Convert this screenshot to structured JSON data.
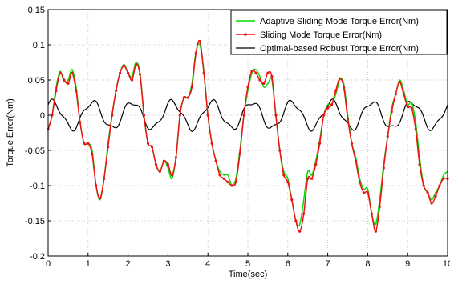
{
  "chart_data": {
    "type": "line",
    "title": "",
    "xlabel": "Time(sec)",
    "ylabel": "Torque Error(Nm)",
    "xlim": [
      0,
      10
    ],
    "ylim": [
      -0.2,
      0.15
    ],
    "x_ticks": [
      "0",
      "1",
      "2",
      "3",
      "4",
      "5",
      "6",
      "7",
      "8",
      "9",
      "10"
    ],
    "y_ticks": [
      "0.15",
      "0.1",
      "0.05",
      "0",
      "-0.05",
      "-0.1",
      "-0.15",
      "-0.2"
    ],
    "grid": true,
    "legend_position": "top-right",
    "series": [
      {
        "name": "Adaptive Sliding Mode Torque Error(Nm)",
        "color": "#00dd00",
        "marker": "none",
        "x": [
          0,
          0.1,
          0.2,
          0.3,
          0.4,
          0.5,
          0.6,
          0.7,
          0.8,
          0.9,
          1.0,
          1.1,
          1.2,
          1.3,
          1.4,
          1.5,
          1.6,
          1.7,
          1.8,
          1.9,
          2.0,
          2.1,
          2.2,
          2.3,
          2.4,
          2.5,
          2.6,
          2.7,
          2.8,
          2.9,
          3.0,
          3.1,
          3.2,
          3.3,
          3.4,
          3.5,
          3.6,
          3.7,
          3.8,
          3.9,
          4.0,
          4.1,
          4.2,
          4.3,
          4.4,
          4.5,
          4.6,
          4.7,
          4.8,
          4.9,
          5.0,
          5.1,
          5.2,
          5.3,
          5.4,
          5.5,
          5.6,
          5.7,
          5.8,
          5.9,
          6.0,
          6.1,
          6.2,
          6.3,
          6.4,
          6.5,
          6.6,
          6.7,
          6.8,
          6.9,
          7.0,
          7.1,
          7.2,
          7.3,
          7.4,
          7.5,
          7.6,
          7.7,
          7.8,
          7.9,
          8.0,
          8.1,
          8.2,
          8.3,
          8.4,
          8.5,
          8.6,
          8.7,
          8.8,
          8.9,
          9.0,
          9.1,
          9.2,
          9.3,
          9.4,
          9.5,
          9.6,
          9.7,
          9.8,
          9.9,
          10.0
        ],
        "y": [
          -0.02,
          0.0,
          0.04,
          0.062,
          0.048,
          0.05,
          0.065,
          0.04,
          -0.01,
          -0.04,
          -0.04,
          -0.05,
          -0.1,
          -0.12,
          -0.09,
          -0.04,
          0.0,
          0.035,
          0.06,
          0.072,
          0.06,
          0.055,
          0.075,
          0.06,
          0.0,
          -0.04,
          -0.045,
          -0.07,
          -0.08,
          -0.065,
          -0.075,
          -0.09,
          -0.06,
          0.0,
          0.025,
          0.025,
          0.045,
          0.09,
          0.1,
          0.06,
          0.0,
          -0.04,
          -0.065,
          -0.08,
          -0.085,
          -0.085,
          -0.1,
          -0.09,
          -0.05,
          0.0,
          0.035,
          0.06,
          0.065,
          0.055,
          0.04,
          0.045,
          0.05,
          0.0,
          -0.05,
          -0.08,
          -0.09,
          -0.12,
          -0.15,
          -0.155,
          -0.12,
          -0.08,
          -0.085,
          -0.065,
          -0.035,
          0.0,
          0.015,
          0.015,
          0.03,
          0.05,
          0.045,
          0.0,
          -0.04,
          -0.06,
          -0.09,
          -0.105,
          -0.105,
          -0.14,
          -0.155,
          -0.12,
          -0.07,
          -0.03,
          0.01,
          0.03,
          0.05,
          0.035,
          0.015,
          0.018,
          -0.01,
          -0.06,
          -0.1,
          -0.11,
          -0.12,
          -0.11,
          -0.1,
          -0.085,
          -0.08
        ]
      },
      {
        "name": "Sliding Mode Torque Error(Nm)",
        "color": "#ee1111",
        "marker": "dot",
        "x": [
          0,
          0.1,
          0.2,
          0.3,
          0.4,
          0.5,
          0.6,
          0.7,
          0.8,
          0.9,
          1.0,
          1.1,
          1.2,
          1.3,
          1.4,
          1.5,
          1.6,
          1.7,
          1.8,
          1.9,
          2.0,
          2.1,
          2.2,
          2.3,
          2.4,
          2.5,
          2.6,
          2.7,
          2.8,
          2.9,
          3.0,
          3.1,
          3.2,
          3.3,
          3.4,
          3.5,
          3.6,
          3.7,
          3.8,
          3.9,
          4.0,
          4.1,
          4.2,
          4.3,
          4.4,
          4.5,
          4.6,
          4.7,
          4.8,
          4.9,
          5.0,
          5.1,
          5.2,
          5.3,
          5.4,
          5.5,
          5.6,
          5.7,
          5.8,
          5.9,
          6.0,
          6.1,
          6.2,
          6.3,
          6.4,
          6.5,
          6.6,
          6.7,
          6.8,
          6.9,
          7.0,
          7.1,
          7.2,
          7.3,
          7.4,
          7.5,
          7.6,
          7.7,
          7.8,
          7.9,
          8.0,
          8.1,
          8.2,
          8.3,
          8.4,
          8.5,
          8.6,
          8.7,
          8.8,
          8.9,
          9.0,
          9.1,
          9.2,
          9.3,
          9.4,
          9.5,
          9.6,
          9.7,
          9.8,
          9.9,
          10.0
        ],
        "y": [
          -0.02,
          0.0,
          0.035,
          0.06,
          0.05,
          0.045,
          0.06,
          0.035,
          -0.01,
          -0.04,
          -0.04,
          -0.055,
          -0.1,
          -0.118,
          -0.09,
          -0.045,
          0.0,
          0.035,
          0.06,
          0.07,
          0.06,
          0.05,
          0.072,
          0.058,
          0.0,
          -0.04,
          -0.045,
          -0.07,
          -0.08,
          -0.065,
          -0.07,
          -0.085,
          -0.06,
          0.0,
          0.025,
          0.025,
          0.04,
          0.088,
          0.105,
          0.06,
          0.0,
          -0.04,
          -0.065,
          -0.085,
          -0.09,
          -0.095,
          -0.1,
          -0.095,
          -0.055,
          0.0,
          0.04,
          0.063,
          0.06,
          0.05,
          0.045,
          0.06,
          0.055,
          0.0,
          -0.05,
          -0.085,
          -0.095,
          -0.12,
          -0.15,
          -0.165,
          -0.14,
          -0.09,
          -0.09,
          -0.07,
          -0.04,
          0.0,
          0.01,
          0.015,
          0.035,
          0.052,
          0.04,
          -0.005,
          -0.04,
          -0.065,
          -0.095,
          -0.11,
          -0.11,
          -0.14,
          -0.165,
          -0.13,
          -0.075,
          -0.03,
          0.005,
          0.03,
          0.047,
          0.03,
          0.012,
          0.01,
          -0.02,
          -0.07,
          -0.1,
          -0.11,
          -0.125,
          -0.115,
          -0.1,
          -0.09,
          -0.09
        ]
      },
      {
        "name": "Optimal-based Robust Torque Error(Nm)",
        "color": "#000000",
        "marker": "none",
        "x": [],
        "y": []
      }
    ]
  }
}
